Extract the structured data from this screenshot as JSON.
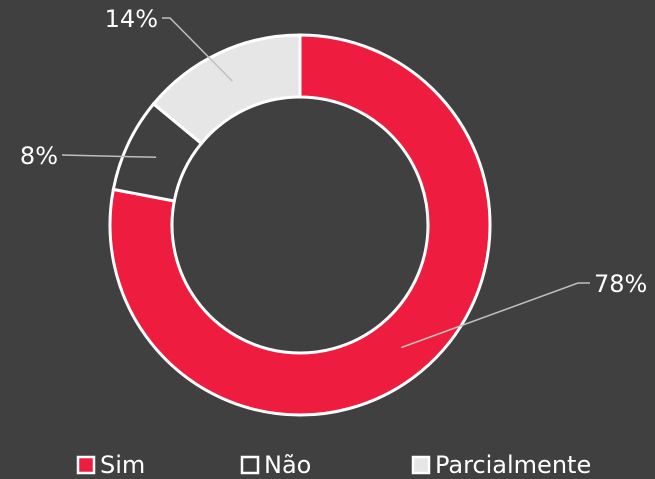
{
  "chart_data": {
    "type": "donut",
    "categories": [
      "Sim",
      "Não",
      "Parcialmente"
    ],
    "values": [
      78,
      8,
      14
    ],
    "value_labels": [
      "78%",
      "8%",
      "14%"
    ],
    "colors": [
      "#ee1c3e",
      "#404040",
      "#e6e6e6"
    ],
    "legend": "bottom"
  }
}
